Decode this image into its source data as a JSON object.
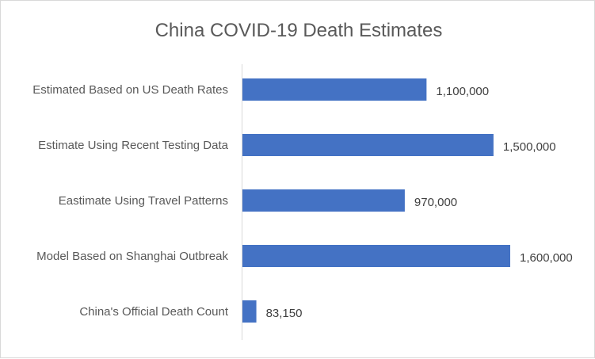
{
  "chart_data": {
    "type": "bar",
    "orientation": "horizontal",
    "title": "China COVID-19 Death Estimates",
    "categories": [
      "Estimated Based on US Death Rates",
      "Estimate Using Recent Testing Data",
      "Eastimate Using Travel Patterns",
      "Model Based on Shanghai Outbreak",
      "China's Official Death Count"
    ],
    "values": [
      1100000,
      1500000,
      970000,
      1600000,
      83150
    ],
    "data_labels": [
      "1,100,000",
      "1,500,000",
      "970,000",
      "1,600,000",
      "83,150"
    ],
    "xlim": [
      0,
      1600000
    ],
    "xlabel": "",
    "ylabel": "",
    "grid": false,
    "legend": "none",
    "bar_color": "#4472C4"
  }
}
